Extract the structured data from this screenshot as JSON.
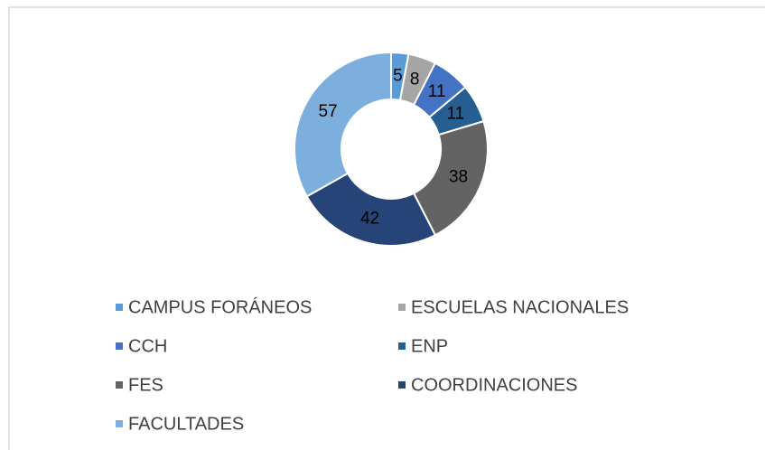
{
  "chart_data": {
    "type": "pie",
    "categories": [
      "CAMPUS FORÁNEOS",
      "ESCUELAS NACIONALES",
      "CCH",
      "ENP",
      "FES",
      "COORDINACIONES",
      "FACULTADES"
    ],
    "values": [
      5,
      8,
      11,
      11,
      38,
      42,
      57
    ],
    "colors": [
      "#5b9bd5",
      "#a5a5a5",
      "#4472c4",
      "#255e91",
      "#636363",
      "#264478",
      "#7cafdd"
    ],
    "legend": "bottom"
  }
}
